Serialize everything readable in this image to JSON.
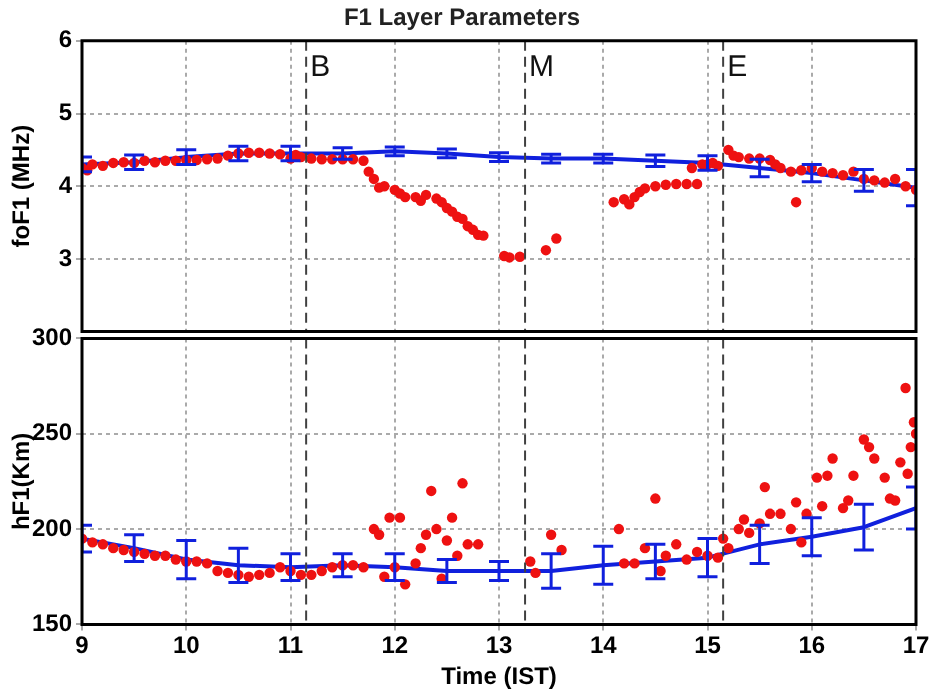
{
  "chart_data": [
    {
      "type": "scatter",
      "title": "F1 Layer Parameters",
      "ylabel": "foF1 (MHz)",
      "xlim": [
        9,
        17
      ],
      "xticks": [
        9,
        10,
        11,
        12,
        13,
        14,
        15,
        16,
        17
      ],
      "ylim": [
        2,
        6
      ],
      "yticks": [
        3,
        4,
        5,
        6
      ],
      "grid": true,
      "legend": false,
      "tick_labels": "y",
      "ref_lines": [
        {
          "axis": "x",
          "value": 11.15,
          "label": "B",
          "color": "#404040",
          "line_style": "dashed"
        },
        {
          "axis": "x",
          "value": 13.25,
          "label": "M",
          "color": "#404040",
          "line_style": "dashed"
        },
        {
          "axis": "x",
          "value": 15.15,
          "label": "E",
          "color": "#404040",
          "line_style": "dashed"
        }
      ],
      "series": [
        {
          "type": "scatter",
          "color": "#ee1111",
          "marker": "circle",
          "x": [
            9.0,
            9.05,
            9.1,
            9.2,
            9.3,
            9.4,
            9.5,
            9.6,
            9.7,
            9.8,
            9.9,
            10.0,
            10.1,
            10.2,
            10.3,
            10.4,
            10.5,
            10.6,
            10.7,
            10.8,
            10.9,
            11.0,
            11.05,
            11.1,
            11.2,
            11.3,
            11.4,
            11.5,
            11.6,
            11.7,
            11.75,
            11.8,
            11.85,
            11.9,
            12.0,
            12.05,
            12.1,
            12.2,
            12.25,
            12.3,
            12.4,
            12.45,
            12.5,
            12.55,
            12.6,
            12.65,
            12.7,
            12.75,
            12.8,
            12.85,
            13.05,
            13.1,
            13.2,
            13.45,
            13.55,
            14.1,
            14.2,
            14.25,
            14.3,
            14.35,
            14.4,
            14.5,
            14.6,
            14.7,
            14.8,
            14.85,
            14.9,
            14.95,
            15.0,
            15.05,
            15.1,
            15.2,
            15.25,
            15.3,
            15.4,
            15.5,
            15.6,
            15.65,
            15.7,
            15.8,
            15.85,
            15.9,
            16.0,
            16.1,
            16.2,
            16.3,
            16.4,
            16.5,
            16.6,
            16.7,
            16.8,
            16.9,
            17.0
          ],
          "values": [
            4.25,
            4.22,
            4.3,
            4.28,
            4.32,
            4.33,
            4.32,
            4.35,
            4.33,
            4.35,
            4.35,
            4.36,
            4.36,
            4.37,
            4.38,
            4.42,
            4.45,
            4.46,
            4.46,
            4.45,
            4.44,
            4.38,
            4.43,
            4.4,
            4.38,
            4.37,
            4.37,
            4.37,
            4.37,
            4.35,
            4.2,
            4.1,
            3.98,
            4.0,
            3.95,
            3.9,
            3.85,
            3.85,
            3.8,
            3.88,
            3.83,
            3.78,
            3.7,
            3.65,
            3.58,
            3.55,
            3.45,
            3.4,
            3.33,
            3.32,
            3.04,
            3.02,
            3.03,
            3.12,
            3.28,
            3.78,
            3.82,
            3.75,
            3.85,
            3.92,
            3.97,
            4.0,
            4.02,
            4.03,
            4.03,
            4.25,
            4.03,
            4.3,
            4.3,
            4.32,
            4.28,
            4.5,
            4.42,
            4.4,
            4.38,
            4.38,
            4.36,
            4.3,
            4.25,
            4.2,
            3.78,
            4.22,
            4.25,
            4.2,
            4.18,
            4.15,
            4.2,
            4.1,
            4.08,
            4.05,
            4.1,
            4.0,
            3.95
          ]
        },
        {
          "type": "line",
          "color": "#1020dd",
          "line_style": "solid",
          "x": [
            9,
            9.5,
            10,
            10.5,
            11,
            11.5,
            12,
            12.5,
            13,
            13.5,
            14,
            14.5,
            15,
            15.5,
            16,
            16.5,
            17
          ],
          "values": [
            4.3,
            4.33,
            4.4,
            4.45,
            4.45,
            4.45,
            4.48,
            4.45,
            4.4,
            4.38,
            4.38,
            4.35,
            4.32,
            4.25,
            4.18,
            4.08,
            3.98
          ],
          "errors": [
            0.1,
            0.1,
            0.1,
            0.1,
            0.1,
            0.08,
            0.06,
            0.06,
            0.06,
            0.06,
            0.06,
            0.08,
            0.1,
            0.12,
            0.12,
            0.15,
            0.25
          ]
        }
      ]
    },
    {
      "type": "scatter",
      "xlabel": "Time (IST)",
      "ylabel": "hF1(Km)",
      "xlim": [
        9,
        17
      ],
      "xticks": [
        9,
        10,
        11,
        12,
        13,
        14,
        15,
        16,
        17
      ],
      "ylim": [
        150,
        300
      ],
      "yticks": [
        150,
        200,
        250,
        300
      ],
      "grid": true,
      "legend": false,
      "ref_lines": [
        {
          "axis": "x",
          "value": 11.15,
          "color": "#404040",
          "line_style": "dashed"
        },
        {
          "axis": "x",
          "value": 13.25,
          "color": "#404040",
          "line_style": "dashed"
        },
        {
          "axis": "x",
          "value": 15.15,
          "color": "#404040",
          "line_style": "dashed"
        }
      ],
      "series": [
        {
          "type": "scatter",
          "color": "#ee1111",
          "marker": "circle",
          "x": [
            9.0,
            9.1,
            9.2,
            9.3,
            9.4,
            9.5,
            9.6,
            9.7,
            9.8,
            9.9,
            10.0,
            10.1,
            10.2,
            10.3,
            10.4,
            10.5,
            10.6,
            10.7,
            10.8,
            10.9,
            11.0,
            11.1,
            11.2,
            11.3,
            11.4,
            11.5,
            11.6,
            11.7,
            11.8,
            11.85,
            11.9,
            11.95,
            12.0,
            12.05,
            12.1,
            12.2,
            12.25,
            12.3,
            12.35,
            12.4,
            12.45,
            12.5,
            12.55,
            12.6,
            12.65,
            12.7,
            12.8,
            13.3,
            13.35,
            13.5,
            13.6,
            14.15,
            14.2,
            14.3,
            14.4,
            14.5,
            14.55,
            14.6,
            14.7,
            14.8,
            14.9,
            15.0,
            15.1,
            15.15,
            15.2,
            15.3,
            15.35,
            15.4,
            15.5,
            15.55,
            15.6,
            15.7,
            15.8,
            15.85,
            15.9,
            15.95,
            16.05,
            16.1,
            16.15,
            16.2,
            16.3,
            16.35,
            16.4,
            16.5,
            16.55,
            16.6,
            16.7,
            16.75,
            16.8,
            16.85,
            16.9,
            16.95,
            17.0,
            16.98,
            16.92
          ],
          "values": [
            195,
            193,
            192,
            190,
            189,
            188,
            187,
            186,
            186,
            184,
            183,
            183,
            182,
            178,
            177,
            176,
            175,
            176,
            177,
            180,
            178,
            176,
            176,
            178,
            180,
            181,
            181,
            180,
            200,
            197,
            175,
            206,
            180,
            206,
            171,
            182,
            190,
            197,
            220,
            200,
            174,
            194,
            206,
            186,
            224,
            192,
            192,
            183,
            177,
            197,
            189,
            200,
            182,
            182,
            190,
            216,
            178,
            186,
            192,
            184,
            188,
            186,
            185,
            195,
            190,
            200,
            205,
            198,
            203,
            222,
            208,
            208,
            200,
            214,
            193,
            208,
            227,
            212,
            228,
            237,
            211,
            215,
            228,
            247,
            243,
            237,
            227,
            216,
            215,
            235,
            274,
            243,
            250,
            256,
            229
          ]
        },
        {
          "type": "line",
          "color": "#1020dd",
          "line_style": "solid",
          "x": [
            9,
            9.5,
            10,
            10.5,
            11,
            11.5,
            12,
            12.5,
            13,
            13.5,
            14,
            14.5,
            15,
            15.5,
            16,
            16.5,
            17
          ],
          "values": [
            195,
            190,
            184,
            181,
            180,
            181,
            180,
            178,
            178,
            178,
            181,
            183,
            185,
            192,
            196,
            201,
            211
          ],
          "errors": [
            7,
            7,
            10,
            9,
            7,
            6,
            7,
            6,
            5,
            9,
            10,
            9,
            10,
            10,
            10,
            12,
            11
          ]
        }
      ]
    }
  ]
}
